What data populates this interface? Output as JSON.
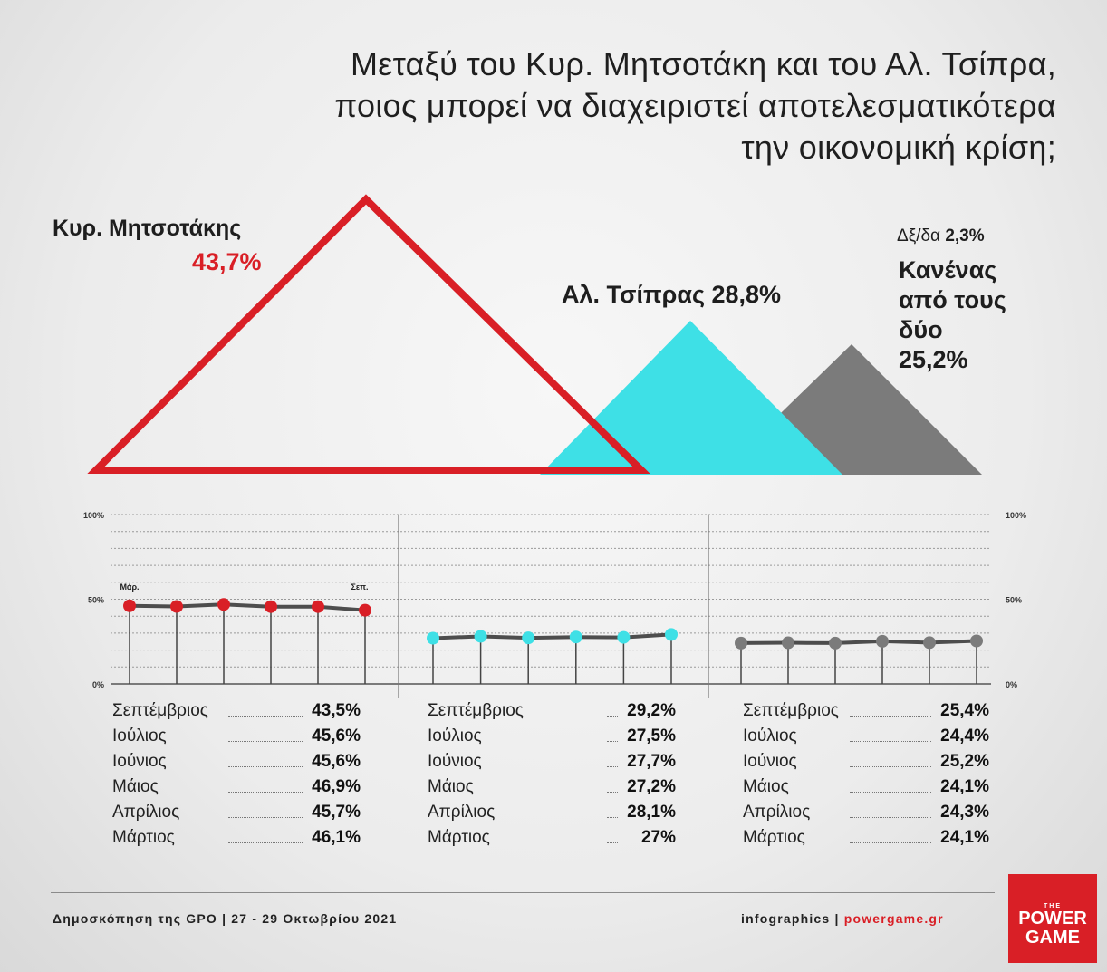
{
  "title_lines": [
    "Μεταξύ του Κυρ. Μητσοτάκη και του Αλ. Τσίπρα,",
    "ποιος μπορεί να διαχειριστεί αποτελεσματικότερα",
    "την οικονομική κρίση;"
  ],
  "labels": {
    "mitsotakis_name": "Κυρ. Μητσοτάκης",
    "mitsotakis_pct": "43,7%",
    "tsipras": "Αλ. Τσίπρας 28,8%",
    "dk_label": "Δξ/δα",
    "dk_pct": "2,3%",
    "none_line1": "Κανένας",
    "none_line2": "από τους",
    "none_line3": "δύο",
    "none_pct": "25,2%"
  },
  "colors": {
    "mitsotakis": "#d91f26",
    "tsipras": "#3ee0e6",
    "none": "#7b7b7b",
    "line": "#4d4d4d"
  },
  "axis_labels": [
    "100%",
    "50%",
    "0%"
  ],
  "chart_data": [
    {
      "type": "area",
      "description": "Current poll result shown as triangles",
      "categories": [
        "Κυρ. Μητσοτάκης",
        "Αλ. Τσίπρας",
        "Κανένας από τους δύο",
        "Δξ/δα"
      ],
      "values": [
        43.7,
        28.8,
        25.2,
        2.3
      ],
      "unit": "%"
    },
    {
      "type": "line",
      "x": [
        "Μάρτιος",
        "Απρίλιος",
        "Μάιος",
        "Ιούνιος",
        "Ιούλιος",
        "Σεπτέμβριος"
      ],
      "ylim": [
        0,
        100
      ],
      "yticks": [
        "0%",
        "50%",
        "100%"
      ],
      "x_marks": [
        "Μάρ.",
        "Σεπ."
      ],
      "series": [
        {
          "name": "Κυρ. Μητσοτάκης",
          "values": [
            46.1,
            45.7,
            46.9,
            45.6,
            45.6,
            43.5
          ]
        },
        {
          "name": "Αλ. Τσίπρας",
          "values": [
            27.0,
            28.1,
            27.2,
            27.7,
            27.5,
            29.2
          ]
        },
        {
          "name": "Κανένας από τους δύο",
          "values": [
            24.1,
            24.3,
            24.1,
            25.2,
            24.4,
            25.4
          ]
        }
      ]
    }
  ],
  "tables": [
    {
      "rows": [
        {
          "month": "Σεπτέμβριος",
          "value": "43,5%"
        },
        {
          "month": "Ιούλιος",
          "value": "45,6%"
        },
        {
          "month": "Ιούνιος",
          "value": "45,6%"
        },
        {
          "month": "Μάιος",
          "value": "46,9%"
        },
        {
          "month": "Απρίλιος",
          "value": "45,7%"
        },
        {
          "month": "Μάρτιος",
          "value": "46,1%"
        }
      ]
    },
    {
      "rows": [
        {
          "month": "Σεπτέμβριος",
          "value": "29,2%"
        },
        {
          "month": "Ιούλιος",
          "value": "27,5%"
        },
        {
          "month": "Ιούνιος",
          "value": "27,7%"
        },
        {
          "month": "Μάιος",
          "value": "27,2%"
        },
        {
          "month": "Απρίλιος",
          "value": "28,1%"
        },
        {
          "month": "Μάρτιος",
          "value": "27%"
        }
      ]
    },
    {
      "rows": [
        {
          "month": "Σεπτέμβριος",
          "value": "25,4%"
        },
        {
          "month": "Ιούλιος",
          "value": "24,4%"
        },
        {
          "month": "Ιούνιος",
          "value": "25,2%"
        },
        {
          "month": "Μάιος",
          "value": "24,1%"
        },
        {
          "month": "Απρίλιος",
          "value": "24,3%"
        },
        {
          "month": "Μάρτιος",
          "value": "24,1%"
        }
      ]
    }
  ],
  "footer": {
    "source": "Δημοσκόπηση της GPO | 27 - 29 Οκτωβρίου 2021",
    "credit_prefix": "infographics |",
    "credit_site": "powergame.gr"
  },
  "logo": {
    "small": "THE",
    "line1": "POWER",
    "line2": "GAME"
  }
}
